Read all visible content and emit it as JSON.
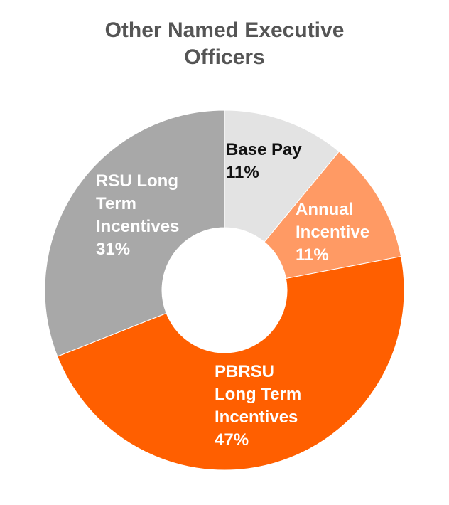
{
  "chart_data": {
    "type": "pie",
    "title_lines": [
      "Other Named Executive",
      "Officers"
    ],
    "slices": [
      {
        "label_lines": [
          "Base Pay"
        ],
        "pct_label": "11%",
        "value": 11,
        "color": "#e3e3e3",
        "text_color": "#111111"
      },
      {
        "label_lines": [
          "Annual",
          "Incentive"
        ],
        "pct_label": "11%",
        "value": 11,
        "color": "#ff9a64",
        "text_color": "#ffffff"
      },
      {
        "label_lines": [
          "PBRSU",
          "Long Term",
          "Incentives"
        ],
        "pct_label": "47%",
        "value": 47,
        "color": "#ff5f00",
        "text_color": "#ffffff"
      },
      {
        "label_lines": [
          "RSU Long",
          "Term",
          "Incentives"
        ],
        "pct_label": "31%",
        "value": 31,
        "color": "#a8a8a8",
        "text_color": "#ffffff"
      }
    ],
    "donut": true
  }
}
